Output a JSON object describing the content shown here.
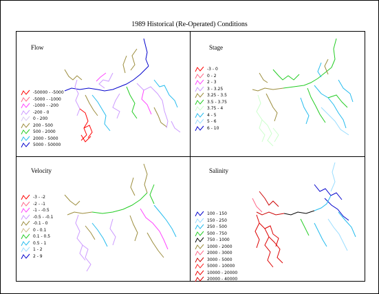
{
  "title": "1989 Historical (Re-Operated) Conditions",
  "panels": {
    "flow": {
      "title": "Flow",
      "legend": [
        {
          "label": "-50000 - -5000",
          "color": "#ff0000"
        },
        {
          "label": "-5000 - -1000",
          "color": "#ff6688"
        },
        {
          "label": "-1000 - -200",
          "color": "#ff44ff"
        },
        {
          "label": "-200 - 0",
          "color": "#cc99ff"
        },
        {
          "label": "0 - 200",
          "color": "#d8c8f0"
        },
        {
          "label": "200 - 500",
          "color": "#9b8c3c"
        },
        {
          "label": "500 - 2000",
          "color": "#22cc22"
        },
        {
          "label": "2000 - 5000",
          "color": "#22bbee"
        },
        {
          "label": "5000 - 50000",
          "color": "#0000cc"
        }
      ]
    },
    "stage": {
      "title": "Stage",
      "legend": [
        {
          "label": "-3 - 0",
          "color": "#ff0000"
        },
        {
          "label": "0 - 2",
          "color": "#ff6688"
        },
        {
          "label": "2 - 3",
          "color": "#ff44ff"
        },
        {
          "label": "3 - 3.25",
          "color": "#cc99ff"
        },
        {
          "label": "3.25 - 3.5",
          "color": "#9b8c3c"
        },
        {
          "label": "3.5 - 3.75",
          "color": "#22cc22"
        },
        {
          "label": "3.75 - 4",
          "color": "#ccffcc"
        },
        {
          "label": "4 - 5",
          "color": "#22bbee"
        },
        {
          "label": "5 - 6",
          "color": "#99ddff"
        },
        {
          "label": "6 - 10",
          "color": "#0000cc"
        }
      ]
    },
    "velocity": {
      "title": "Velocity",
      "legend": [
        {
          "label": "-3 - -2",
          "color": "#ff0000"
        },
        {
          "label": "-2 - -1",
          "color": "#ff6688"
        },
        {
          "label": "-1 - -0.5",
          "color": "#ff44ff"
        },
        {
          "label": "-0.5 - -0.1",
          "color": "#cc99ff"
        },
        {
          "label": "-0.1 - 0",
          "color": "#9b8c3c"
        },
        {
          "label": "0 - 0.1",
          "color": "#ccbb88"
        },
        {
          "label": "0.1 - 0.5",
          "color": "#22cc22"
        },
        {
          "label": "0.5 - 1",
          "color": "#22bbee"
        },
        {
          "label": "1 - 2",
          "color": "#99ddff"
        },
        {
          "label": "2 - 9",
          "color": "#0000cc"
        }
      ]
    },
    "salinity": {
      "title": "Salinity",
      "legend": [
        {
          "label": "100 - 150",
          "color": "#0000cc"
        },
        {
          "label": "150 - 250",
          "color": "#99ddff"
        },
        {
          "label": "250 - 500",
          "color": "#22bbee"
        },
        {
          "label": "500 - 750",
          "color": "#22cc22"
        },
        {
          "label": "750 - 1000",
          "color": "#000000"
        },
        {
          "label": "1000 - 2000",
          "color": "#9b8c3c"
        },
        {
          "label": "2000 - 3000",
          "color": "#ff6688"
        },
        {
          "label": "3000 - 5000",
          "color": "#cc0000"
        },
        {
          "label": "5000 - 10000",
          "color": "#ff2222"
        },
        {
          "label": "10000 - 20000",
          "color": "#ee0000"
        },
        {
          "label": "20000 - 40000",
          "color": "#dd0000"
        }
      ]
    }
  }
}
